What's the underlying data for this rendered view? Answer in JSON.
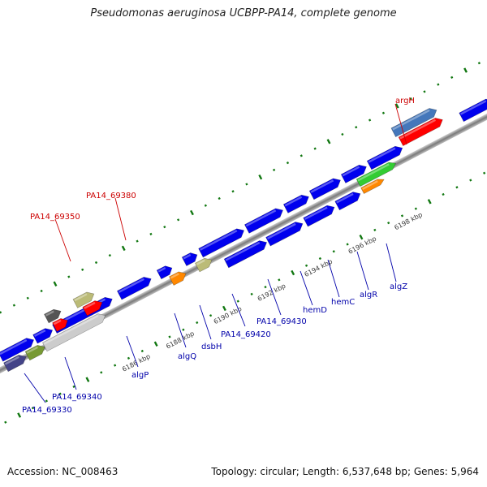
{
  "title": "Pseudomonas aeruginosa UCBPP-PA14, complete genome",
  "footer": {
    "accession": "Accession: NC_008463",
    "summary": "Topology: circular; Length: 6,537,648 bp; Genes: 5,964"
  },
  "colors": {
    "label_red": "#cc0000",
    "label_blue": "#0000aa",
    "gene_blue": "#0000ee",
    "gene_red": "#ff0000",
    "gene_orange": "#ff8800",
    "gene_green": "#33cc33",
    "gene_khaki": "#bbbb77",
    "gene_steel": "#4477bb",
    "gene_gray": "#555555",
    "gene_lightgray": "#cccccc",
    "gene_olive": "#779933",
    "gene_slate": "#444488",
    "tick_green": "#117711"
  },
  "ticks": [
    "6186 kbp",
    "6188 kbp",
    "6190 kbp",
    "6192 kbp",
    "6194 kbp",
    "6196 kbp",
    "6198 kbp"
  ],
  "labels": [
    {
      "text": "argH",
      "color": "red"
    },
    {
      "text": "PA14_69380",
      "color": "red"
    },
    {
      "text": "PA14_69350",
      "color": "red"
    },
    {
      "text": "algZ",
      "color": "blue"
    },
    {
      "text": "algR",
      "color": "blue"
    },
    {
      "text": "hemC",
      "color": "blue"
    },
    {
      "text": "hemD",
      "color": "blue"
    },
    {
      "text": "PA14_69430",
      "color": "blue"
    },
    {
      "text": "PA14_69420",
      "color": "blue"
    },
    {
      "text": "dsbH",
      "color": "blue"
    },
    {
      "text": "algQ",
      "color": "blue"
    },
    {
      "text": "algP",
      "color": "blue"
    },
    {
      "text": "PA14_69340",
      "color": "blue"
    },
    {
      "text": "PA14_69330",
      "color": "blue"
    }
  ]
}
